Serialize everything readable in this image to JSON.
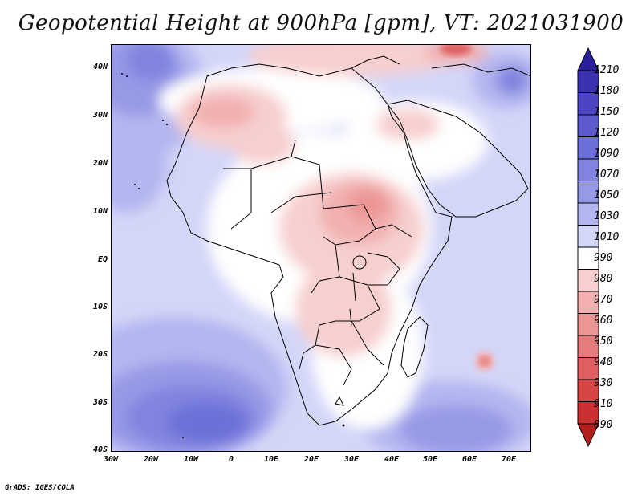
{
  "title": "Geopotential Height at 900hPa [gpm], VT: 2021031900",
  "credit": "GrADS: IGES/COLA",
  "lat_labels": [
    "40N",
    "30N",
    "20N",
    "10N",
    "EQ",
    "10S",
    "20S",
    "30S",
    "40S"
  ],
  "lon_labels": [
    "30W",
    "20W",
    "10W",
    "0",
    "10E",
    "20E",
    "30E",
    "40E",
    "50E",
    "60E",
    "70E"
  ],
  "colorbar": {
    "labels": [
      "1210",
      "1180",
      "1150",
      "1120",
      "1090",
      "1070",
      "1050",
      "1030",
      "1010",
      "990",
      "980",
      "970",
      "960",
      "950",
      "940",
      "930",
      "910",
      "890"
    ],
    "colors": [
      "#2a1f9a",
      "#3a31b0",
      "#4b45c2",
      "#5c5ccf",
      "#6d70d8",
      "#8084de",
      "#9699e6",
      "#b3b6ef",
      "#d4d6f8",
      "#ffffff",
      "#f7cfcf",
      "#f2b0b0",
      "#ec9595",
      "#e67b7b",
      "#df6060",
      "#d84545",
      "#c93030",
      "#b31f1f"
    ]
  },
  "chart_data": {
    "type": "heatmap",
    "title": "Geopotential Height at 900hPa [gpm], VT: 2021031900",
    "variable": "Geopotential Height",
    "level_hpa": 900,
    "units": "gpm",
    "valid_time": "2021031900",
    "lon_range": [
      -30,
      75
    ],
    "lat_range": [
      -40,
      45
    ],
    "contour_levels": [
      890,
      910,
      930,
      940,
      950,
      960,
      970,
      980,
      990,
      1010,
      1030,
      1050,
      1070,
      1090,
      1120,
      1150,
      1180,
      1210
    ]
  }
}
